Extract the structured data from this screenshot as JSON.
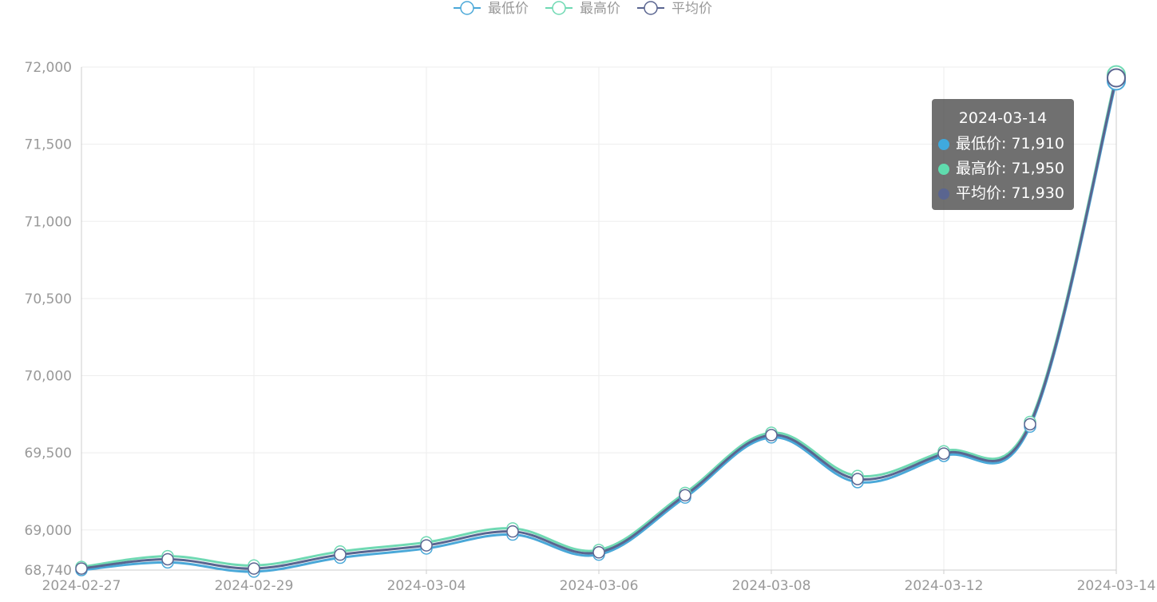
{
  "colors": {
    "low": "#4aa8d8",
    "high": "#6fd9b3",
    "avg": "#5a6590",
    "axis_text": "#999999",
    "grid": "#eeeeee",
    "axis_line": "#cccccc"
  },
  "tooltip": {
    "title": "2024-03-14",
    "rows": [
      {
        "name": "最低价",
        "value": "71,910",
        "color": "#3fa9dd"
      },
      {
        "name": "最高价",
        "value": "71,950",
        "color": "#5fdcae"
      },
      {
        "name": "平均价",
        "value": "71,930",
        "color": "#5a6590"
      }
    ]
  },
  "chart_data": {
    "type": "line",
    "smooth": true,
    "x": [
      "2024-02-27",
      "2024-02-28",
      "2024-02-29",
      "2024-03-01",
      "2024-03-04",
      "2024-03-05",
      "2024-03-06",
      "2024-03-07",
      "2024-03-08",
      "2024-03-11",
      "2024-03-12",
      "2024-03-13",
      "2024-03-14"
    ],
    "x_tick_labels": [
      "2024-02-27",
      "2024-02-29",
      "2024-03-04",
      "2024-03-06",
      "2024-03-08",
      "2024-03-12",
      "2024-03-14"
    ],
    "y_ticks": [
      68740,
      69000,
      69500,
      70000,
      70500,
      71000,
      71500,
      72000
    ],
    "y_tick_labels": [
      "68,740",
      "69,000",
      "69,500",
      "70,000",
      "70,500",
      "71,000",
      "71,500",
      "72,000"
    ],
    "ylim": [
      68740,
      72000
    ],
    "grid": true,
    "legend_position": "top-center",
    "series": [
      {
        "name": "最低价",
        "color": "#4aa8d8",
        "values": [
          68740,
          68790,
          68730,
          68820,
          68880,
          68970,
          68840,
          69210,
          69600,
          69310,
          69480,
          69670,
          71910
        ]
      },
      {
        "name": "最高价",
        "color": "#6fd9b3",
        "values": [
          68760,
          68830,
          68770,
          68860,
          68920,
          69010,
          68870,
          69240,
          69630,
          69350,
          69510,
          69700,
          71950
        ]
      },
      {
        "name": "平均价",
        "color": "#5a6590",
        "values": [
          68750,
          68810,
          68750,
          68840,
          68900,
          68990,
          68855,
          69225,
          69615,
          69330,
          69495,
          69685,
          71930
        ]
      }
    ]
  }
}
